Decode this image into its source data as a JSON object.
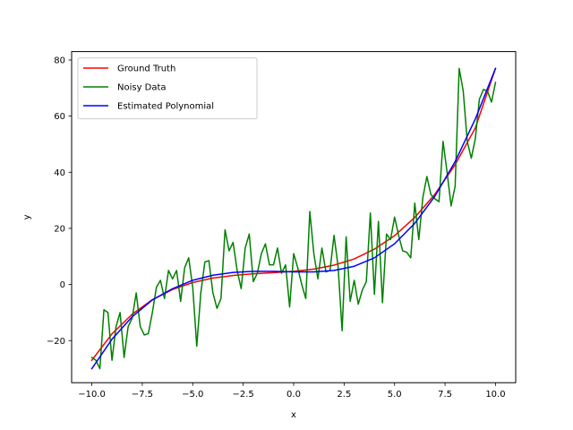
{
  "chart_data": {
    "type": "line",
    "title": "",
    "xlabel": "x",
    "ylabel": "y",
    "xlim": [
      -11,
      11
    ],
    "ylim": [
      -35,
      83
    ],
    "xticks": [
      -10,
      -7.5,
      -5,
      -2.5,
      0,
      2.5,
      5,
      7.5,
      10
    ],
    "xtick_labels": [
      "−10.0",
      "−7.5",
      "−5.0",
      "−2.5",
      "0.0",
      "2.5",
      "5.0",
      "7.5",
      "10.0"
    ],
    "yticks": [
      -20,
      0,
      20,
      40,
      60,
      80
    ],
    "ytick_labels": [
      "−20",
      "0",
      "20",
      "40",
      "60",
      "80"
    ],
    "grid": false,
    "legend_position": "top-left",
    "series": [
      {
        "name": "Ground Truth",
        "color": "#ff0000",
        "x": [
          -10,
          -9,
          -8,
          -7,
          -6,
          -5,
          -4,
          -3,
          -2,
          -1,
          0,
          1,
          2,
          3,
          4,
          5,
          6,
          7,
          8,
          9,
          10
        ],
        "y": [
          -27,
          -17.6,
          -10.6,
          -5.4,
          -1.8,
          0.7,
          2.3,
          3.2,
          3.8,
          4.2,
          4.7,
          5.5,
          6.9,
          9.1,
          12.6,
          17.4,
          23.9,
          32.2,
          42.7,
          55.8,
          77.0
        ]
      },
      {
        "name": "Noisy Data",
        "color": "#008000",
        "x": [
          -10.0,
          -9.8,
          -9.6,
          -9.4,
          -9.2,
          -9.0,
          -8.8,
          -8.6,
          -8.4,
          -8.2,
          -8.0,
          -7.8,
          -7.6,
          -7.4,
          -7.2,
          -7.0,
          -6.8,
          -6.6,
          -6.4,
          -6.2,
          -6.0,
          -5.8,
          -5.6,
          -5.4,
          -5.2,
          -5.0,
          -4.8,
          -4.6,
          -4.4,
          -4.2,
          -4.0,
          -3.8,
          -3.6,
          -3.4,
          -3.2,
          -3.0,
          -2.8,
          -2.6,
          -2.4,
          -2.2,
          -2.0,
          -1.8,
          -1.6,
          -1.4,
          -1.2,
          -1.0,
          -0.8,
          -0.6,
          -0.4,
          -0.2,
          0.0,
          0.2,
          0.4,
          0.6,
          0.8,
          1.0,
          1.2,
          1.4,
          1.6,
          1.8,
          2.0,
          2.2,
          2.4,
          2.6,
          2.8,
          3.0,
          3.2,
          3.4,
          3.6,
          3.8,
          4.0,
          4.2,
          4.4,
          4.6,
          4.8,
          5.0,
          5.2,
          5.4,
          5.6,
          5.8,
          6.0,
          6.2,
          6.4,
          6.6,
          6.8,
          7.0,
          7.2,
          7.4,
          7.6,
          7.8,
          8.0,
          8.2,
          8.4,
          8.6,
          8.8,
          9.0,
          9.2,
          9.4,
          9.6,
          9.8,
          10.0
        ],
        "y": [
          -26,
          -27,
          -30,
          -9,
          -10,
          -27,
          -15,
          -10,
          -26,
          -15,
          -12,
          -3,
          -15,
          -18,
          -17.5,
          -10,
          -1,
          1.5,
          -5,
          5,
          2,
          5,
          -6,
          6,
          9.5,
          -1,
          -22,
          -3,
          8,
          8.5,
          -3,
          -8.5,
          -5,
          19.5,
          12,
          15,
          5,
          -1.5,
          13,
          18,
          1,
          4,
          11,
          14.5,
          7,
          7,
          13,
          4,
          7,
          -8,
          11,
          6,
          0,
          -5,
          26,
          11,
          2,
          13,
          4.5,
          5,
          17.5,
          6.5,
          -16.5,
          17,
          -6,
          1.5,
          -7,
          -2,
          1,
          25.5,
          -3.5,
          22.5,
          -6.5,
          18,
          16,
          24,
          17.5,
          12,
          11.5,
          9.5,
          29,
          16,
          31,
          38.5,
          32,
          30.5,
          29.5,
          51,
          40,
          28,
          35,
          77,
          69,
          51,
          45,
          52,
          66,
          69.5,
          69,
          65,
          72
        ]
      },
      {
        "name": "Estimated Polynomial",
        "color": "#0000ff",
        "x": [
          -10,
          -9,
          -8,
          -7,
          -6,
          -5,
          -4,
          -3,
          -2,
          -1,
          0,
          1,
          2,
          3,
          4,
          5,
          6,
          7,
          8,
          9,
          10
        ],
        "y": [
          -30,
          -19.5,
          -11.5,
          -5.5,
          -1.5,
          1.5,
          3.3,
          4.3,
          4.7,
          4.7,
          4.5,
          4.5,
          5.0,
          6.5,
          9.5,
          14.5,
          21.8,
          31.5,
          43.8,
          59.0,
          77.0
        ]
      }
    ]
  }
}
